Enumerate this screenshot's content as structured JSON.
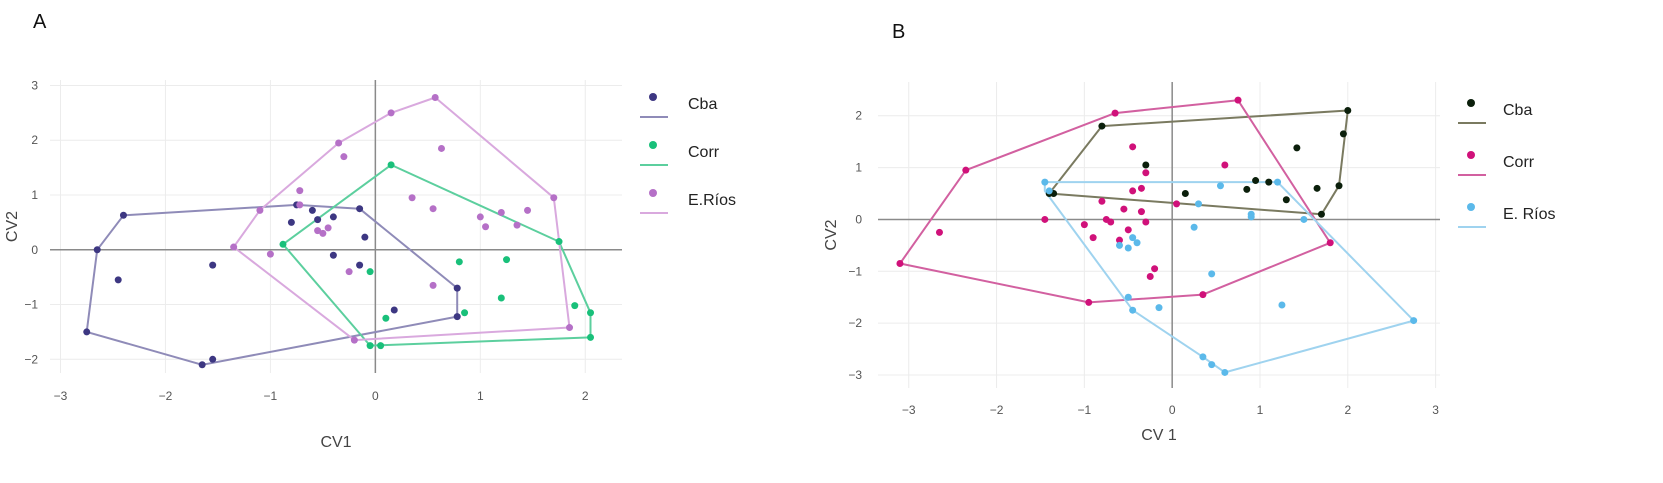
{
  "chart_data": [
    {
      "panel": "A",
      "type": "scatter",
      "xlabel": "CV1",
      "ylabel": "CV2",
      "xlim": [
        -3.1,
        2.35
      ],
      "ylim": [
        -2.25,
        3.1
      ],
      "xticks": [
        -3,
        -2,
        -1,
        0,
        1,
        2
      ],
      "yticks": [
        -2,
        -1,
        0,
        1,
        2,
        3
      ],
      "xtick_labels": [
        "−3",
        "−2",
        "−1",
        "0",
        "1",
        "2"
      ],
      "ytick_labels": [
        "−2",
        "−1",
        "0",
        "1",
        "2",
        "3"
      ],
      "legend_position": "right",
      "series": [
        {
          "name": "Cba",
          "color": "#3d3782",
          "hull_color": "#8f8bb8",
          "points": [
            [
              -2.4,
              0.63
            ],
            [
              -2.65,
              0.0
            ],
            [
              -2.45,
              -0.55
            ],
            [
              -1.55,
              -0.28
            ],
            [
              -1.55,
              -2.0
            ],
            [
              -1.65,
              -2.1
            ],
            [
              -2.75,
              -1.5
            ],
            [
              -0.75,
              0.82
            ],
            [
              -0.6,
              0.72
            ],
            [
              -0.4,
              0.6
            ],
            [
              -0.15,
              0.75
            ],
            [
              -0.1,
              0.23
            ],
            [
              -0.4,
              -0.1
            ],
            [
              -0.15,
              -0.28
            ],
            [
              0.18,
              -1.1
            ],
            [
              0.78,
              -1.22
            ],
            [
              0.78,
              -0.7
            ],
            [
              -0.55,
              0.55
            ],
            [
              -0.8,
              0.5
            ]
          ],
          "hull": [
            [
              -2.4,
              0.63
            ],
            [
              -0.75,
              0.82
            ],
            [
              -0.15,
              0.75
            ],
            [
              0.78,
              -0.7
            ],
            [
              0.78,
              -1.22
            ],
            [
              -1.65,
              -2.1
            ],
            [
              -2.75,
              -1.5
            ],
            [
              -2.65,
              0.0
            ]
          ]
        },
        {
          "name": "Corr",
          "color": "#19c07a",
          "hull_color": "#5ccf9e",
          "points": [
            [
              0.15,
              1.55
            ],
            [
              -0.88,
              0.1
            ],
            [
              -0.05,
              -0.4
            ],
            [
              -0.05,
              -1.75
            ],
            [
              0.05,
              -1.75
            ],
            [
              0.1,
              -1.25
            ],
            [
              0.8,
              -0.22
            ],
            [
              0.85,
              -1.15
            ],
            [
              1.2,
              -0.88
            ],
            [
              1.25,
              -0.18
            ],
            [
              1.75,
              0.15
            ],
            [
              1.9,
              -1.02
            ],
            [
              2.05,
              -1.15
            ],
            [
              2.05,
              -1.6
            ]
          ],
          "hull": [
            [
              0.15,
              1.55
            ],
            [
              1.75,
              0.15
            ],
            [
              2.05,
              -1.15
            ],
            [
              2.05,
              -1.6
            ],
            [
              -0.05,
              -1.75
            ],
            [
              -0.88,
              0.1
            ]
          ]
        },
        {
          "name": "E.Ríos",
          "color": "#b570c7",
          "hull_color": "#d9a9de",
          "points": [
            [
              0.57,
              2.78
            ],
            [
              0.15,
              2.5
            ],
            [
              -0.35,
              1.95
            ],
            [
              -0.3,
              1.7
            ],
            [
              0.63,
              1.85
            ],
            [
              -0.72,
              1.08
            ],
            [
              -1.1,
              0.72
            ],
            [
              -0.72,
              0.82
            ],
            [
              -0.55,
              0.35
            ],
            [
              -0.5,
              0.3
            ],
            [
              -0.45,
              0.4
            ],
            [
              -1.35,
              0.05
            ],
            [
              -1.0,
              -0.08
            ],
            [
              0.35,
              0.95
            ],
            [
              0.55,
              0.75
            ],
            [
              1.0,
              0.6
            ],
            [
              1.05,
              0.42
            ],
            [
              1.2,
              0.68
            ],
            [
              1.35,
              0.45
            ],
            [
              1.45,
              0.72
            ],
            [
              1.7,
              0.95
            ],
            [
              0.55,
              -0.65
            ],
            [
              -0.25,
              -0.4
            ],
            [
              -0.2,
              -1.65
            ],
            [
              1.85,
              -1.42
            ]
          ],
          "hull": [
            [
              0.57,
              2.78
            ],
            [
              1.7,
              0.95
            ],
            [
              1.85,
              -1.42
            ],
            [
              -0.2,
              -1.65
            ],
            [
              -1.35,
              0.05
            ],
            [
              -1.1,
              0.72
            ],
            [
              -0.35,
              1.95
            ],
            [
              0.15,
              2.5
            ]
          ]
        }
      ]
    },
    {
      "panel": "B",
      "type": "scatter",
      "xlabel": "CV 1",
      "ylabel": "CV2",
      "xlim": [
        -3.35,
        3.05
      ],
      "ylim": [
        -3.25,
        2.65
      ],
      "xticks": [
        -3,
        -2,
        -1,
        0,
        1,
        2,
        3
      ],
      "yticks": [
        -3,
        -2,
        -1,
        0,
        1,
        2
      ],
      "xtick_labels": [
        "−3",
        "−2",
        "−1",
        "0",
        "1",
        "2",
        "3"
      ],
      "ytick_labels": [
        "−3",
        "−2",
        "−1",
        "0",
        "1",
        "2"
      ],
      "legend_position": "right",
      "series": [
        {
          "name": "Cba",
          "color": "#0b1f0b",
          "hull_color": "#7a7a60",
          "points": [
            [
              -0.8,
              1.8
            ],
            [
              2.0,
              2.1
            ],
            [
              1.95,
              1.65
            ],
            [
              1.9,
              0.65
            ],
            [
              1.7,
              0.1
            ],
            [
              -1.35,
              0.5
            ],
            [
              -1.4,
              0.5
            ],
            [
              -0.3,
              1.05
            ],
            [
              0.95,
              0.75
            ],
            [
              1.1,
              0.72
            ],
            [
              1.3,
              0.38
            ],
            [
              1.42,
              1.38
            ],
            [
              0.85,
              0.58
            ],
            [
              0.15,
              0.5
            ],
            [
              1.65,
              0.6
            ]
          ],
          "hull": [
            [
              -0.8,
              1.8
            ],
            [
              2.0,
              2.1
            ],
            [
              1.9,
              0.65
            ],
            [
              1.7,
              0.1
            ],
            [
              -1.4,
              0.5
            ]
          ]
        },
        {
          "name": "Corr",
          "color": "#d0117a",
          "hull_color": "#d260a0",
          "points": [
            [
              -2.35,
              0.95
            ],
            [
              -3.1,
              -0.85
            ],
            [
              -2.65,
              -0.25
            ],
            [
              -0.65,
              2.05
            ],
            [
              0.75,
              2.3
            ],
            [
              1.8,
              -0.45
            ],
            [
              0.35,
              -1.45
            ],
            [
              -0.95,
              -1.6
            ],
            [
              -1.45,
              0.0
            ],
            [
              -1.0,
              -0.1
            ],
            [
              -0.8,
              0.35
            ],
            [
              -0.7,
              -0.05
            ],
            [
              -0.6,
              -0.4
            ],
            [
              -0.55,
              0.2
            ],
            [
              -0.45,
              1.4
            ],
            [
              -0.35,
              0.6
            ],
            [
              -0.3,
              0.9
            ],
            [
              -0.3,
              -0.05
            ],
            [
              -0.2,
              -0.95
            ],
            [
              -0.25,
              -1.1
            ],
            [
              -0.35,
              0.15
            ],
            [
              -0.45,
              0.55
            ],
            [
              0.05,
              0.3
            ],
            [
              0.6,
              1.05
            ],
            [
              -0.75,
              0.0
            ],
            [
              -0.9,
              -0.35
            ],
            [
              -0.5,
              -0.2
            ]
          ],
          "hull": [
            [
              -3.1,
              -0.85
            ],
            [
              -2.35,
              0.95
            ],
            [
              -0.65,
              2.05
            ],
            [
              0.75,
              2.3
            ],
            [
              1.8,
              -0.45
            ],
            [
              0.35,
              -1.45
            ],
            [
              -0.95,
              -1.6
            ]
          ]
        },
        {
          "name": "E. Ríos",
          "color": "#5bb9ea",
          "hull_color": "#9fd3ef",
          "points": [
            [
              -1.45,
              0.72
            ],
            [
              1.2,
              0.72
            ],
            [
              2.75,
              -1.95
            ],
            [
              0.6,
              -2.95
            ],
            [
              0.45,
              -2.8
            ],
            [
              0.35,
              -2.65
            ],
            [
              -0.5,
              -1.5
            ],
            [
              -0.45,
              -1.75
            ],
            [
              -0.15,
              -1.7
            ],
            [
              0.45,
              -1.05
            ],
            [
              1.25,
              -1.65
            ],
            [
              -0.5,
              -0.55
            ],
            [
              -0.4,
              -0.45
            ],
            [
              0.3,
              0.3
            ],
            [
              0.25,
              -0.15
            ],
            [
              0.55,
              0.65
            ],
            [
              0.9,
              0.1
            ],
            [
              0.9,
              0.05
            ],
            [
              -1.4,
              0.55
            ],
            [
              1.5,
              0.0
            ],
            [
              -0.6,
              -0.5
            ],
            [
              -0.45,
              -0.35
            ]
          ],
          "hull": [
            [
              -1.45,
              0.72
            ],
            [
              1.2,
              0.72
            ],
            [
              2.75,
              -1.95
            ],
            [
              0.6,
              -2.95
            ],
            [
              0.35,
              -2.65
            ],
            [
              -0.45,
              -1.75
            ],
            [
              -1.45,
              0.55
            ]
          ]
        }
      ]
    }
  ]
}
